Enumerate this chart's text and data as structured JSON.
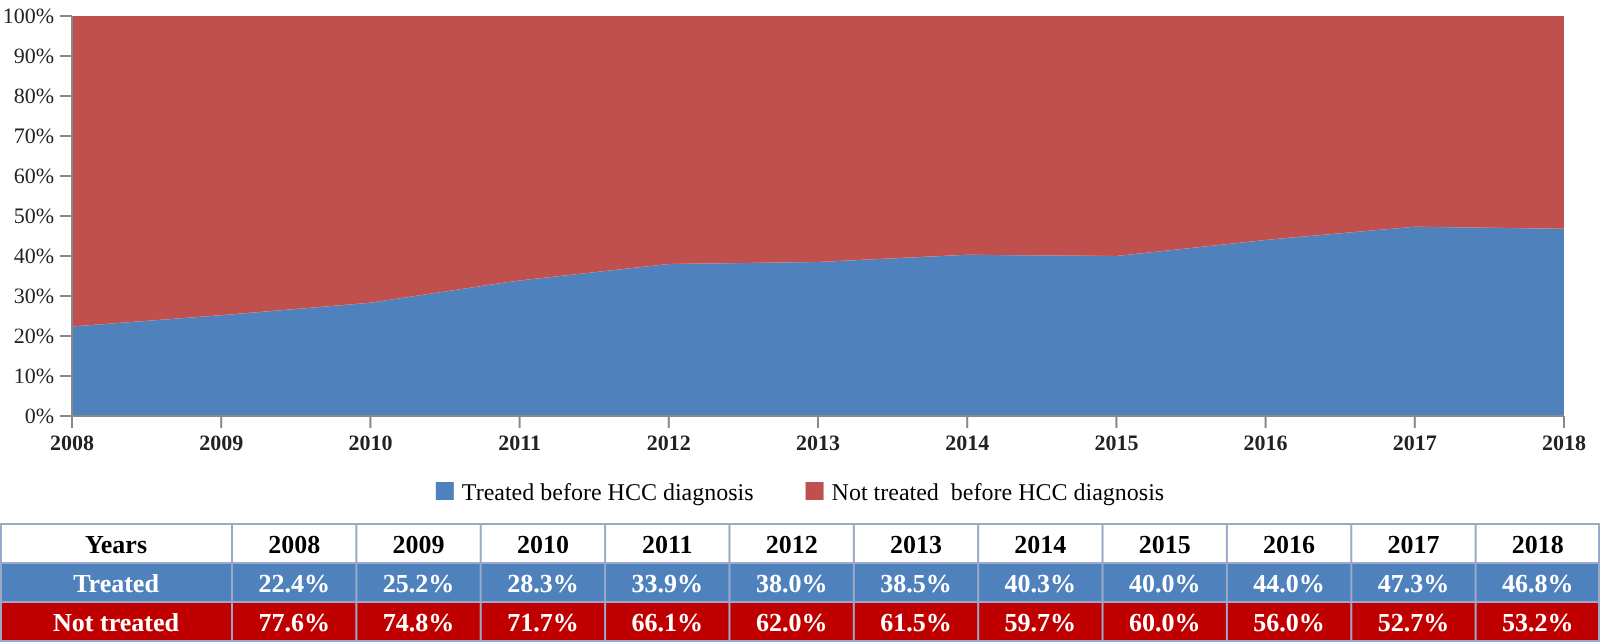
{
  "chart_data": {
    "type": "area",
    "stacked": true,
    "x": [
      2008,
      2009,
      2010,
      2011,
      2012,
      2013,
      2014,
      2015,
      2016,
      2017,
      2018
    ],
    "xlim": [
      2008,
      2018
    ],
    "xticks": [
      2008,
      2009,
      2010,
      2011,
      2012,
      2013,
      2014,
      2015,
      2016,
      2017,
      2018
    ],
    "ylim": [
      0,
      100
    ],
    "yticks": [
      {
        "value": 0,
        "label": "0%"
      },
      {
        "value": 10,
        "label": "10%"
      },
      {
        "value": 20,
        "label": "20%"
      },
      {
        "value": 30,
        "label": "30%"
      },
      {
        "value": 40,
        "label": "40%"
      },
      {
        "value": 50,
        "label": "50%"
      },
      {
        "value": 60,
        "label": "60%"
      },
      {
        "value": 70,
        "label": "70%"
      },
      {
        "value": 80,
        "label": "80%"
      },
      {
        "value": 90,
        "label": "90%"
      },
      {
        "value": 100,
        "label": "100%"
      }
    ],
    "legend": "bottom",
    "annotations": [
      "Years",
      "2008",
      "2009",
      "2010",
      "2011",
      "2012",
      "2013",
      "2014",
      "2015",
      "2016",
      "2017",
      "2018",
      "Treated",
      "22.4%",
      "25.2%",
      "28.3%",
      "33.9%",
      "38.0%",
      "38.5%",
      "40.3%",
      "40.0%",
      "44.0%",
      "47.3%",
      "46.8%",
      "Not treated",
      "77.6%",
      "74.8%",
      "71.7%",
      "66.1%",
      "62.0%",
      "61.5%",
      "59.7%",
      "60.0%",
      "56.0%",
      "52.7%",
      "53.2%"
    ],
    "series": [
      {
        "name": "Treated before HCC diagnosis",
        "color": "#4f81bd",
        "values": [
          22.4,
          25.2,
          28.3,
          33.9,
          38.0,
          38.5,
          40.3,
          40.0,
          44.0,
          47.3,
          46.8
        ]
      },
      {
        "name": "Not treated  before HCC diagnosis",
        "color": "#c0504d",
        "values": [
          77.6,
          74.8,
          71.7,
          66.1,
          62.0,
          61.5,
          59.7,
          60.0,
          56.0,
          52.7,
          53.2
        ]
      }
    ]
  }
}
